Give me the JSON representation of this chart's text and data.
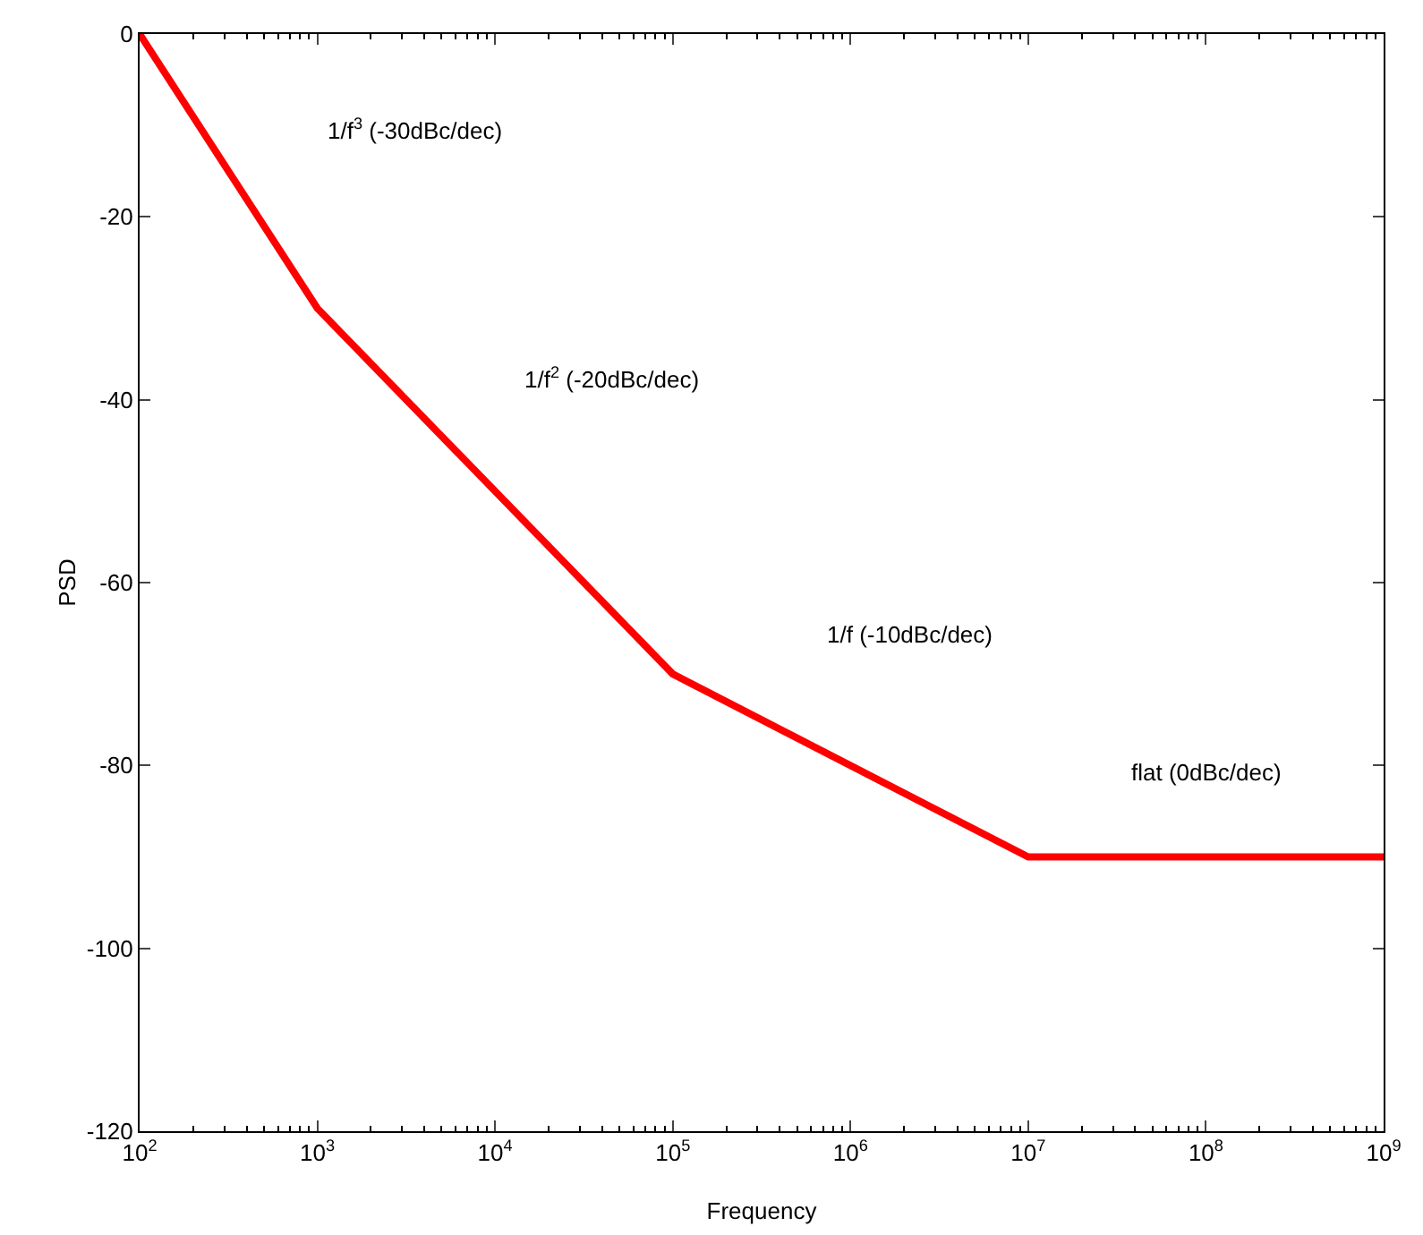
{
  "chart_data": {
    "type": "line",
    "xlabel": "Frequency",
    "ylabel": "PSD",
    "x": [
      100,
      1000,
      100000,
      10000000,
      1000000000
    ],
    "series": [
      {
        "color": "#ff0000",
        "values": [
          0,
          -30,
          -70,
          -90,
          -90
        ]
      }
    ],
    "log": "x",
    "xlim": [
      100,
      1000000000
    ],
    "ylim": [
      -120,
      0
    ],
    "xticks": [
      {
        "value": 100,
        "label": "10$^{2}$"
      },
      {
        "value": 1000,
        "label": "10$^{3}$"
      },
      {
        "value": 10000,
        "label": "10$^{4}$"
      },
      {
        "value": 100000,
        "label": "10$^{5}$"
      },
      {
        "value": 1000000,
        "label": "10$^{6}$"
      },
      {
        "value": 10000000,
        "label": "10$^{7}$"
      },
      {
        "value": 100000000,
        "label": "10$^{8}$"
      },
      {
        "value": 1000000000,
        "label": "10$^{9}$"
      }
    ],
    "yticks": [
      -120,
      -100,
      -80,
      -60,
      -40,
      -20,
      0
    ],
    "grid": false,
    "marker": "none",
    "line_style": "solid",
    "annotations": [
      "1/f$^{3}$ (-30dBc/dec)",
      "1/f$^{2}$ (-20dBc/dec)",
      "1/f (-10dBc/dec)",
      "flat (0dBc/dec)"
    ]
  }
}
